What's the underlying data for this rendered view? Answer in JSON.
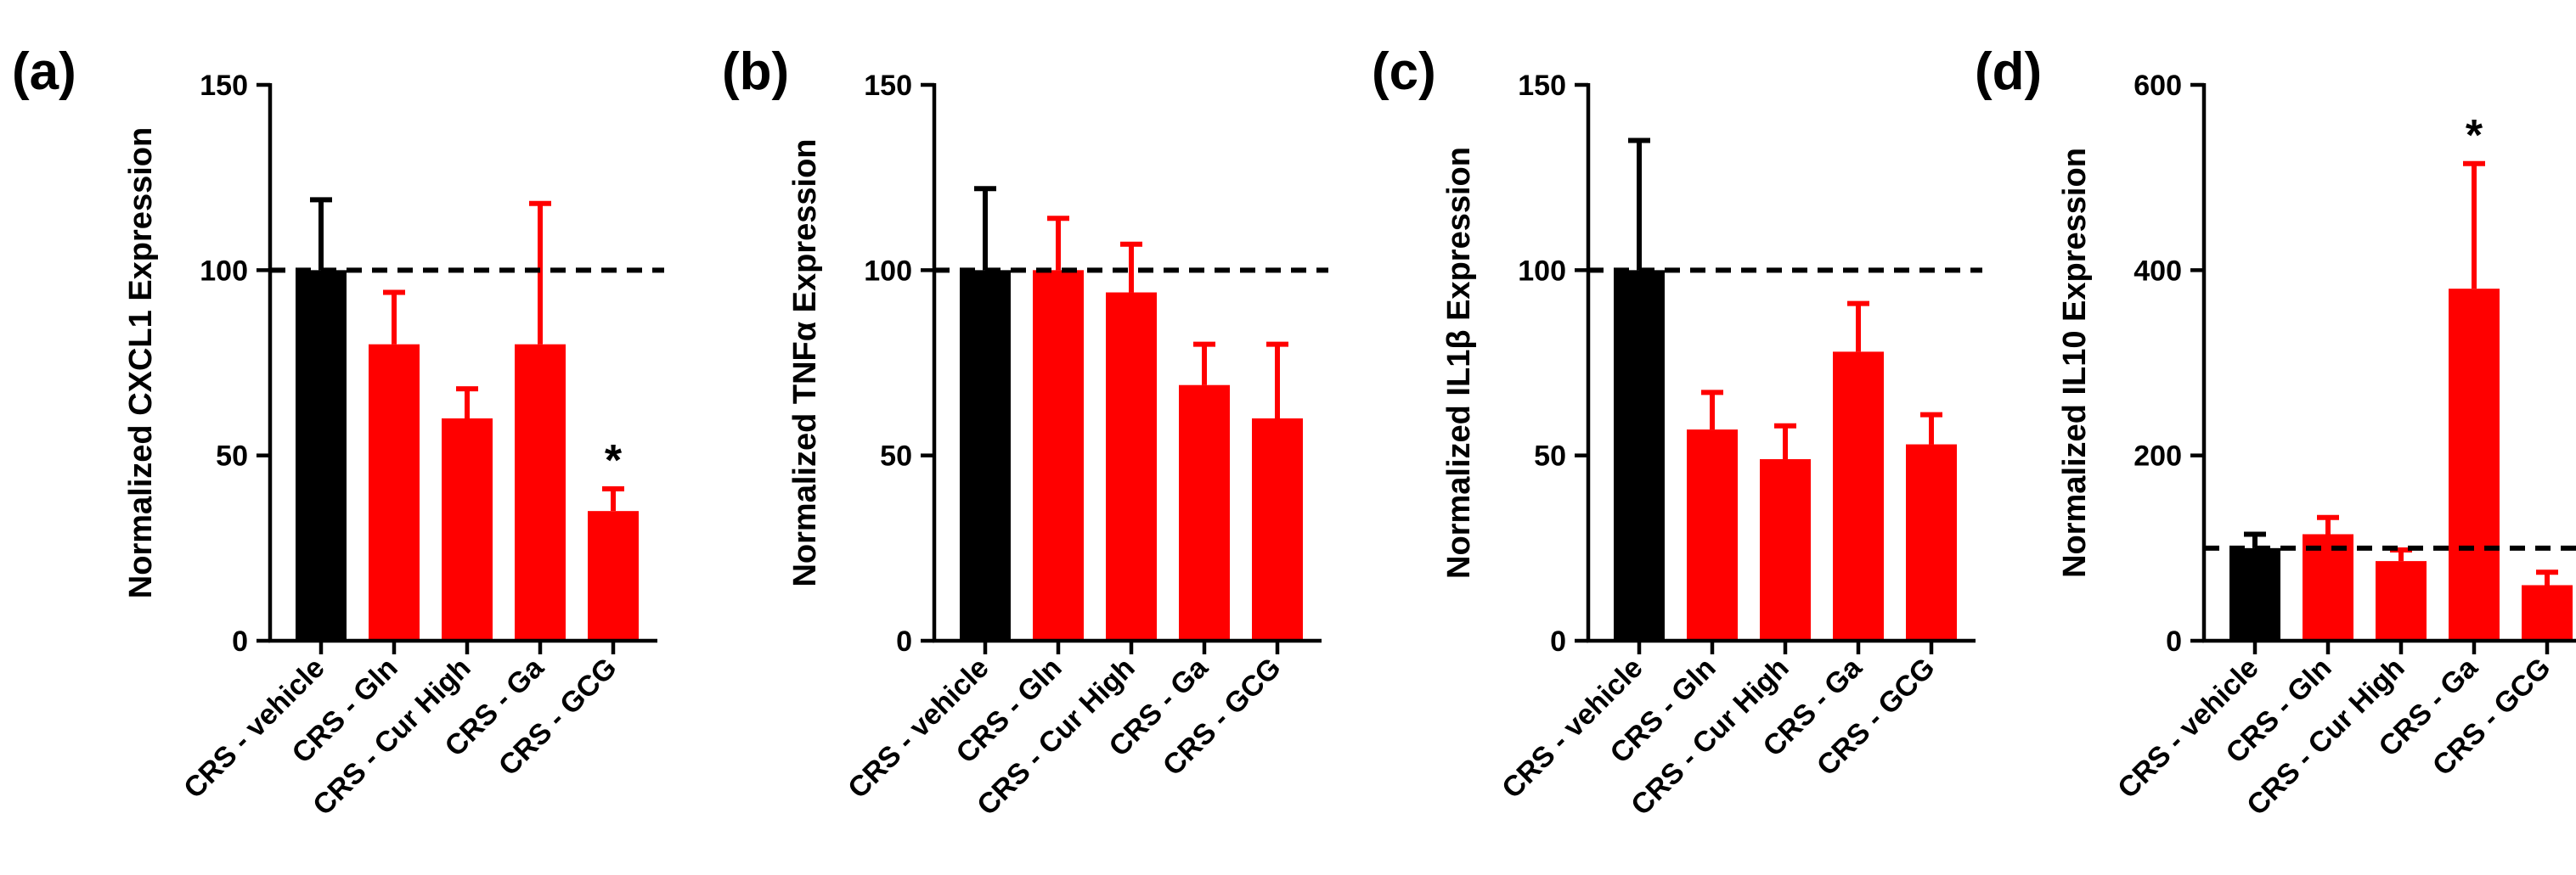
{
  "chart_data": [
    {
      "type": "bar",
      "panel_label": "(a)",
      "ylabel": "Normalized CXCL1 Expression",
      "ylim": [
        0,
        150
      ],
      "yticks": [
        0,
        50,
        100,
        150
      ],
      "reference_line": 100,
      "categories": [
        "CRS - vehicle",
        "CRS - Gln",
        "CRS - Cur High",
        "CRS - Ga",
        "CRS - GCG"
      ],
      "values": [
        100,
        80,
        60,
        80,
        35
      ],
      "errors": [
        19,
        14,
        8,
        38,
        6
      ],
      "colors": [
        "#000000",
        "#ff0000",
        "#ff0000",
        "#ff0000",
        "#ff0000"
      ],
      "significance": [
        "",
        "",
        "",
        "",
        "*"
      ]
    },
    {
      "type": "bar",
      "panel_label": "(b)",
      "ylabel": "Normalized TNFα Expression",
      "ylim": [
        0,
        150
      ],
      "yticks": [
        0,
        50,
        100,
        150
      ],
      "reference_line": 100,
      "categories": [
        "CRS - vehicle",
        "CRS - Gln",
        "CRS - Cur High",
        "CRS - Ga",
        "CRS - GCG"
      ],
      "values": [
        100,
        100,
        94,
        69,
        60
      ],
      "errors": [
        22,
        14,
        13,
        11,
        20
      ],
      "colors": [
        "#000000",
        "#ff0000",
        "#ff0000",
        "#ff0000",
        "#ff0000"
      ],
      "significance": [
        "",
        "",
        "",
        "",
        ""
      ]
    },
    {
      "type": "bar",
      "panel_label": "(c)",
      "ylabel": "Normalized IL1β Expression",
      "ylim": [
        0,
        150
      ],
      "yticks": [
        0,
        50,
        100,
        150
      ],
      "reference_line": 100,
      "categories": [
        "CRS - vehicle",
        "CRS - Gln",
        "CRS - Cur High",
        "CRS - Ga",
        "CRS - GCG"
      ],
      "values": [
        100,
        57,
        49,
        78,
        53
      ],
      "errors": [
        35,
        10,
        9,
        13,
        8
      ],
      "colors": [
        "#000000",
        "#ff0000",
        "#ff0000",
        "#ff0000",
        "#ff0000"
      ],
      "significance": [
        "",
        "",
        "",
        "",
        ""
      ]
    },
    {
      "type": "bar",
      "panel_label": "(d)",
      "ylabel": "Normalized IL10 Expression",
      "ylim": [
        0,
        600
      ],
      "yticks": [
        0,
        200,
        400,
        600
      ],
      "reference_line": 100,
      "categories": [
        "CRS - vehicle",
        "CRS - Gln",
        "CRS - Cur High",
        "CRS - Ga",
        "CRS - GCG"
      ],
      "values": [
        100,
        115,
        86,
        380,
        60
      ],
      "errors": [
        15,
        18,
        12,
        135,
        14
      ],
      "colors": [
        "#000000",
        "#ff0000",
        "#ff0000",
        "#ff0000",
        "#ff0000"
      ],
      "significance": [
        "",
        "",
        "",
        "*",
        ""
      ]
    }
  ]
}
